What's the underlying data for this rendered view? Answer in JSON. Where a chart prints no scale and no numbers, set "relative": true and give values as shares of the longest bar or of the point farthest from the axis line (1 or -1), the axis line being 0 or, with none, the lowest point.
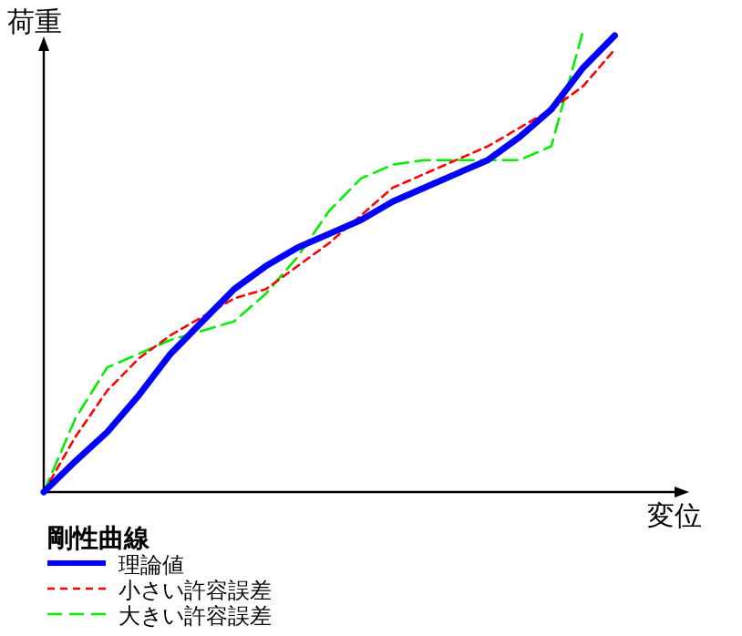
{
  "chart_data": {
    "type": "line",
    "xlabel": "変位",
    "ylabel": "荷重",
    "legend_title": "剛性曲線",
    "relative": true,
    "legend": "bottom left",
    "categories": [
      null,
      null,
      null,
      null,
      null,
      null,
      null,
      null,
      null,
      null,
      null,
      null,
      null,
      null,
      null,
      null,
      null,
      null,
      null
    ],
    "series": [
      {
        "name": "理論値",
        "color": "#0000ff",
        "line_style": "solid",
        "values": [
          0,
          0.067,
          0.13,
          0.21,
          0.3,
          0.37,
          0.44,
          0.49,
          0.53,
          0.56,
          0.59,
          0.63,
          0.66,
          0.69,
          0.72,
          0.77,
          0.83,
          0.92,
          0.99
        ]
      },
      {
        "name": "小さい許容誤差",
        "color": "#ff0000",
        "line_style": "dashed",
        "values": [
          0,
          0.12,
          0.22,
          0.29,
          0.34,
          0.38,
          0.42,
          0.44,
          0.49,
          0.54,
          0.6,
          0.66,
          0.69,
          0.72,
          0.75,
          0.79,
          0.83,
          0.88,
          0.96
        ]
      },
      {
        "name": "大きい許容誤差",
        "color": "#00ee00",
        "line_style": "longdash",
        "values": [
          0,
          0.16,
          0.27,
          0.3,
          0.33,
          0.35,
          0.37,
          0.43,
          0.51,
          0.61,
          0.68,
          0.71,
          0.72,
          0.72,
          0.72,
          0.72,
          0.75,
          1.0,
          null
        ]
      }
    ]
  }
}
